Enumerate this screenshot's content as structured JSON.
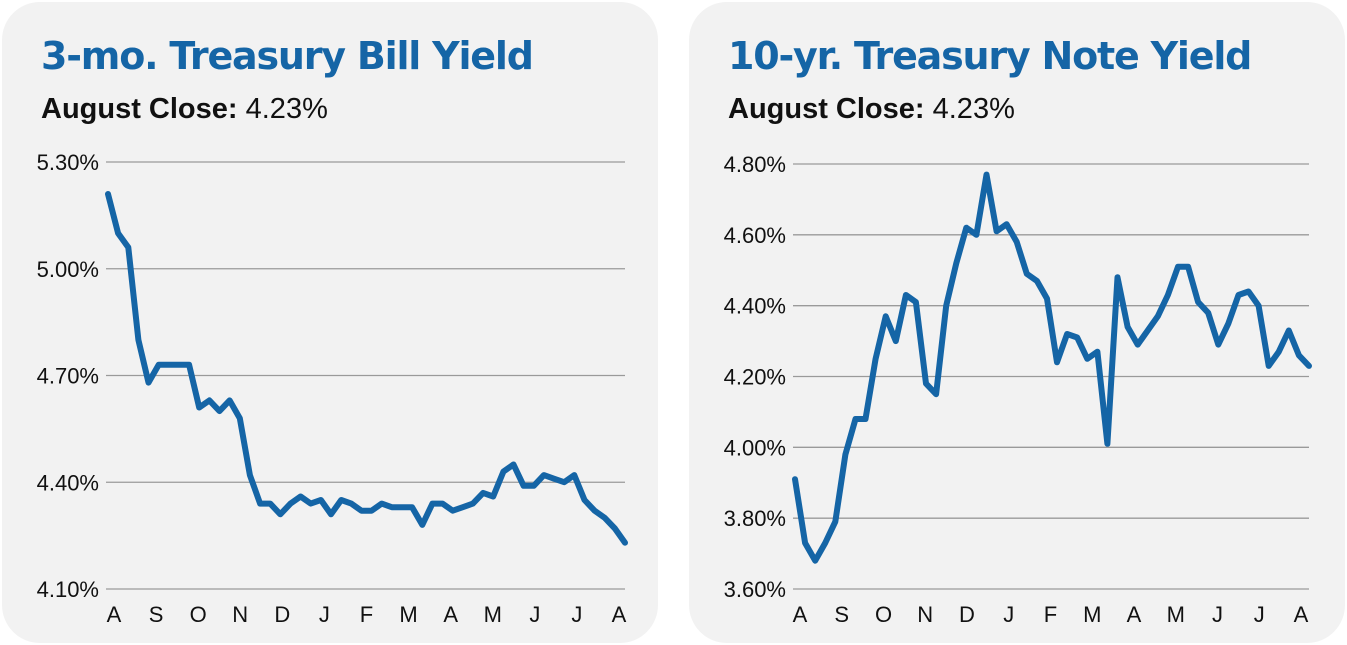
{
  "chart_data": [
    {
      "type": "line",
      "title": "3-mo. Treasury Bill Yield",
      "subtitle_label": "August Close:",
      "subtitle_value": "4.23%",
      "yticks": [
        "5.30%",
        "5.00%",
        "4.70%",
        "4.40%",
        "4.10%"
      ],
      "ylim": [
        4.1,
        5.3
      ],
      "xticks": [
        "A",
        "S",
        "O",
        "N",
        "D",
        "J",
        "F",
        "M",
        "A",
        "M",
        "J",
        "J",
        "A"
      ],
      "grid": true,
      "color": "#1565a6",
      "series": [
        {
          "values": [
            5.21,
            5.1,
            5.06,
            4.8,
            4.68,
            4.73,
            4.73,
            4.73,
            4.73,
            4.61,
            4.63,
            4.6,
            4.63,
            4.58,
            4.42,
            4.34,
            4.34,
            4.31,
            4.34,
            4.36,
            4.34,
            4.35,
            4.31,
            4.35,
            4.34,
            4.32,
            4.32,
            4.34,
            4.33,
            4.33,
            4.33,
            4.28,
            4.34,
            4.34,
            4.32,
            4.33,
            4.34,
            4.37,
            4.36,
            4.43,
            4.45,
            4.39,
            4.39,
            4.42,
            4.41,
            4.4,
            4.42,
            4.35,
            4.32,
            4.3,
            4.27,
            4.23
          ]
        }
      ]
    },
    {
      "type": "line",
      "title": "10-yr. Treasury Note Yield",
      "subtitle_label": "August Close:",
      "subtitle_value": "4.23%",
      "yticks": [
        "4.80%",
        "4.60%",
        "4.40%",
        "4.20%",
        "4.00%",
        "3.80%",
        "3.60%"
      ],
      "ylim": [
        3.6,
        4.8
      ],
      "xticks": [
        "A",
        "S",
        "O",
        "N",
        "D",
        "J",
        "F",
        "M",
        "A",
        "M",
        "J",
        "J",
        "A"
      ],
      "grid": true,
      "color": "#1565a6",
      "series": [
        {
          "values": [
            3.91,
            3.73,
            3.68,
            3.73,
            3.79,
            3.98,
            4.08,
            4.08,
            4.25,
            4.37,
            4.3,
            4.43,
            4.41,
            4.18,
            4.15,
            4.4,
            4.52,
            4.62,
            4.6,
            4.77,
            4.61,
            4.63,
            4.58,
            4.49,
            4.47,
            4.42,
            4.24,
            4.32,
            4.31,
            4.25,
            4.27,
            4.01,
            4.48,
            4.34,
            4.29,
            4.33,
            4.37,
            4.43,
            4.51,
            4.51,
            4.41,
            4.38,
            4.29,
            4.35,
            4.43,
            4.44,
            4.4,
            4.23,
            4.27,
            4.33,
            4.26,
            4.23
          ]
        }
      ]
    }
  ]
}
